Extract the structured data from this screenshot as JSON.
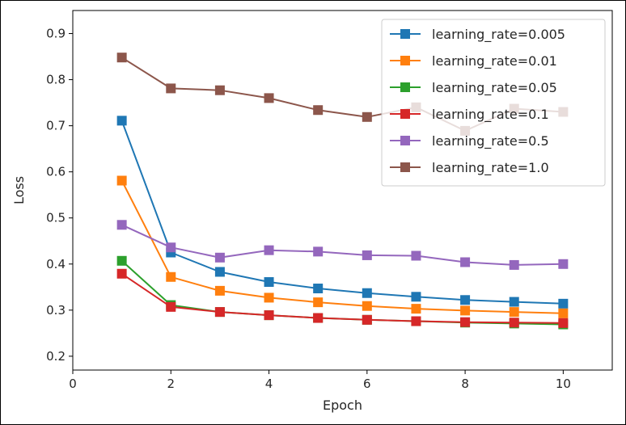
{
  "chart_data": {
    "type": "line",
    "title": "",
    "xlabel": "Epoch",
    "ylabel": "Loss",
    "xlim": [
      0,
      11
    ],
    "ylim": [
      0.17,
      0.95
    ],
    "xticks": [
      0,
      2,
      4,
      6,
      8,
      10
    ],
    "yticks": [
      0.2,
      0.3,
      0.4,
      0.5,
      0.6,
      0.7,
      0.8,
      0.9
    ],
    "ytick_labels": [
      "0.2",
      "0.3",
      "0.4",
      "0.5",
      "0.6",
      "0.7",
      "0.8",
      "0.9"
    ],
    "grid": false,
    "legend_position": "top-right",
    "marker": "square",
    "x": [
      1,
      2,
      3,
      4,
      5,
      6,
      7,
      8,
      9,
      10
    ],
    "series": [
      {
        "name": "learning_rate=0.005",
        "color": "#1f77b4",
        "values": [
          0.711,
          0.425,
          0.383,
          0.361,
          0.347,
          0.337,
          0.329,
          0.322,
          0.318,
          0.314
        ]
      },
      {
        "name": "learning_rate=0.01",
        "color": "#ff7f0e",
        "values": [
          0.581,
          0.372,
          0.342,
          0.327,
          0.317,
          0.309,
          0.303,
          0.299,
          0.296,
          0.293
        ]
      },
      {
        "name": "learning_rate=0.05",
        "color": "#2ca02c",
        "values": [
          0.407,
          0.311,
          0.296,
          0.289,
          0.283,
          0.279,
          0.276,
          0.273,
          0.271,
          0.269
        ]
      },
      {
        "name": "learning_rate=0.1",
        "color": "#d62728",
        "values": [
          0.379,
          0.307,
          0.296,
          0.289,
          0.283,
          0.279,
          0.276,
          0.274,
          0.273,
          0.272
        ]
      },
      {
        "name": "learning_rate=0.5",
        "color": "#9467bd",
        "values": [
          0.485,
          0.436,
          0.414,
          0.43,
          0.427,
          0.419,
          0.418,
          0.404,
          0.398,
          0.4
        ]
      },
      {
        "name": "learning_rate=1.0",
        "color": "#8c564b",
        "values": [
          0.848,
          0.781,
          0.777,
          0.76,
          0.734,
          0.719,
          0.74,
          0.689,
          0.737,
          0.73
        ]
      }
    ]
  }
}
